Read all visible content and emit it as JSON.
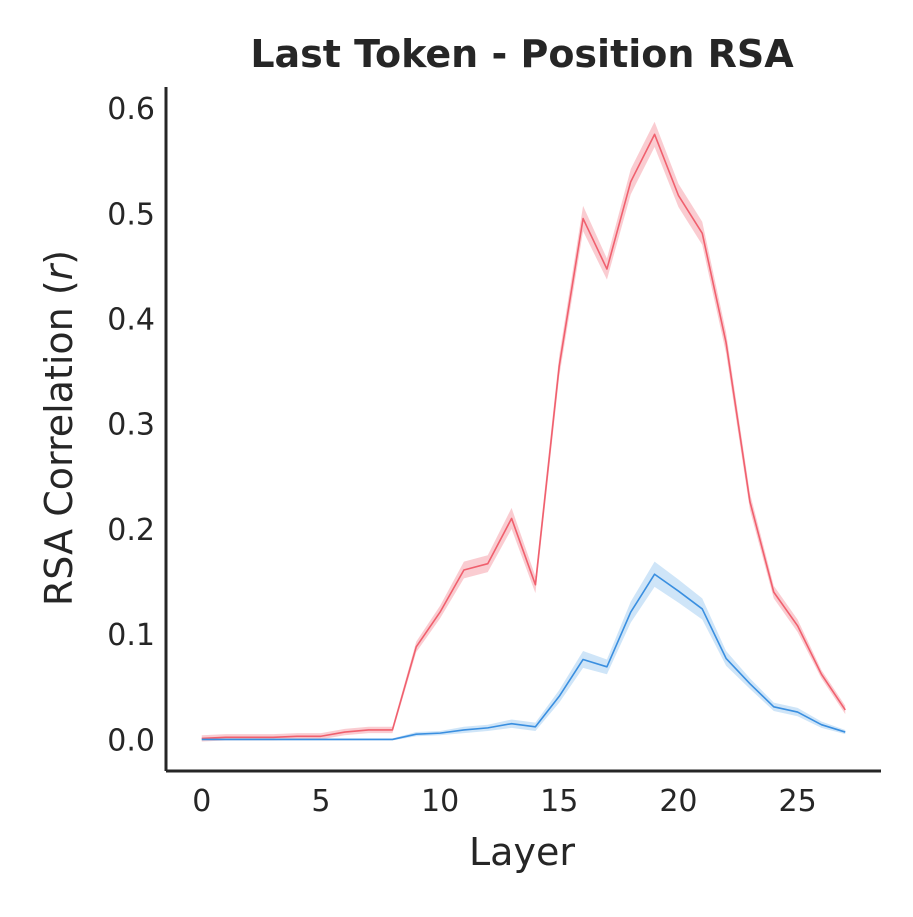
{
  "chart_data": {
    "type": "line",
    "title": "Last Token - Position RSA",
    "xlabel": "Layer",
    "ylabel": "RSA Correlation (r)",
    "ylabel_prefix": "RSA Correlation (",
    "ylabel_var": "r",
    "ylabel_suffix": ")",
    "xlim": [
      -1.5,
      28.5
    ],
    "ylim": [
      -0.03,
      0.62
    ],
    "xticks": [
      0,
      5,
      10,
      15,
      20,
      25
    ],
    "xtick_labels": [
      "0",
      "5",
      "10",
      "15",
      "20",
      "25"
    ],
    "yticks": [
      0.0,
      0.1,
      0.2,
      0.3,
      0.4,
      0.5,
      0.6
    ],
    "ytick_labels": [
      "0.0",
      "0.1",
      "0.2",
      "0.3",
      "0.4",
      "0.5",
      "0.6"
    ],
    "grid": false,
    "x": [
      0,
      1,
      2,
      3,
      4,
      5,
      6,
      7,
      8,
      9,
      10,
      11,
      12,
      13,
      14,
      15,
      16,
      17,
      18,
      19,
      20,
      21,
      22,
      23,
      24,
      25,
      26,
      27
    ],
    "series": [
      {
        "color": "#f0606e",
        "band_color": "#f5a3ab",
        "values": [
          0.001,
          0.002,
          0.002,
          0.002,
          0.003,
          0.003,
          0.007,
          0.009,
          0.009,
          0.088,
          0.121,
          0.161,
          0.167,
          0.21,
          0.147,
          0.355,
          0.495,
          0.447,
          0.53,
          0.575,
          0.517,
          0.481,
          0.377,
          0.226,
          0.14,
          0.108,
          0.062,
          0.028
        ],
        "band": [
          0.003,
          0.003,
          0.003,
          0.003,
          0.003,
          0.003,
          0.003,
          0.003,
          0.003,
          0.005,
          0.006,
          0.008,
          0.008,
          0.01,
          0.008,
          0.01,
          0.012,
          0.01,
          0.012,
          0.012,
          0.011,
          0.011,
          0.01,
          0.008,
          0.006,
          0.006,
          0.004,
          0.004
        ]
      },
      {
        "color": "#3a8fe0",
        "band_color": "#a8d0f2",
        "values": [
          0.0,
          0.0,
          0.0,
          0.0,
          0.0,
          0.0,
          0.0,
          0.0,
          0.0,
          0.005,
          0.006,
          0.009,
          0.011,
          0.015,
          0.012,
          0.041,
          0.076,
          0.069,
          0.121,
          0.157,
          0.141,
          0.124,
          0.077,
          0.053,
          0.031,
          0.026,
          0.014,
          0.007
        ],
        "band": [
          0.001,
          0.001,
          0.001,
          0.001,
          0.001,
          0.001,
          0.001,
          0.001,
          0.001,
          0.002,
          0.002,
          0.003,
          0.003,
          0.004,
          0.004,
          0.006,
          0.008,
          0.007,
          0.01,
          0.012,
          0.011,
          0.01,
          0.007,
          0.005,
          0.004,
          0.004,
          0.003,
          0.002
        ]
      }
    ]
  }
}
